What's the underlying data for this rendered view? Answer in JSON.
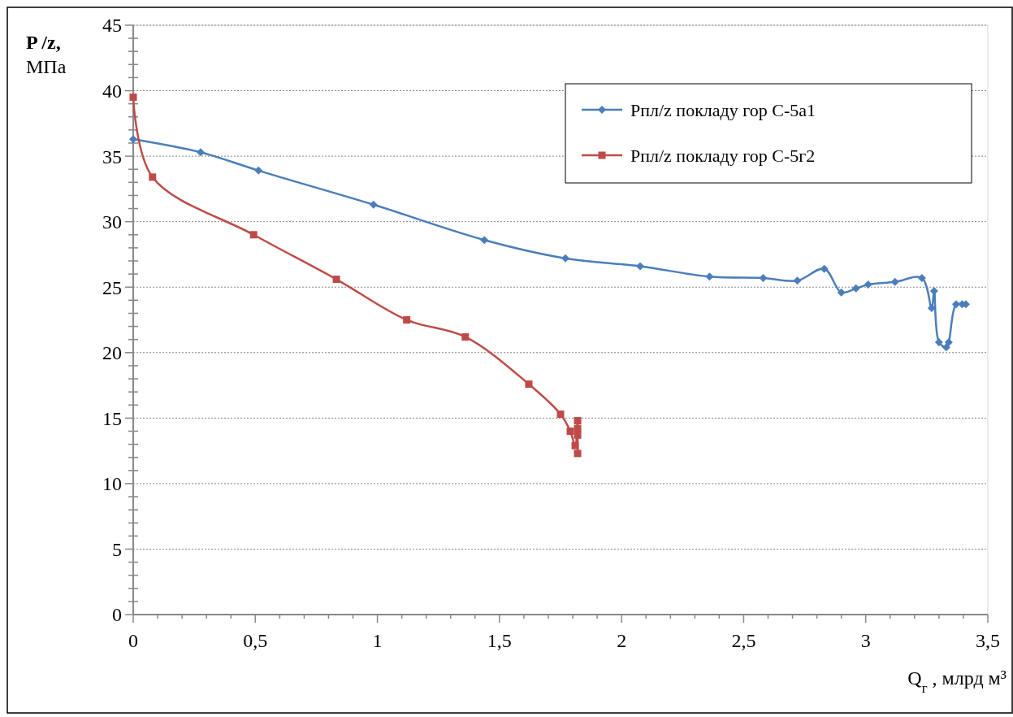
{
  "chart_data": {
    "type": "line",
    "xlabel": "Q$_{г}$ , млрд м³",
    "ylabel": "P /z, МПа",
    "xlim": [
      0,
      3.5
    ],
    "ylim": [
      0,
      45
    ],
    "xticks": [
      0,
      {
        "value": 0.1,
        "label": null
      },
      {
        "value": 0.2,
        "label": null
      },
      {
        "value": 0.3,
        "label": null
      },
      {
        "value": 0.4,
        "label": null
      },
      {
        "value": 0.5,
        "label": "0,5"
      },
      {
        "value": 0.6,
        "label": null
      },
      {
        "value": 0.7,
        "label": null
      },
      {
        "value": 0.8,
        "label": null
      },
      {
        "value": 0.9,
        "label": null
      },
      1,
      {
        "value": 1.1,
        "label": null
      },
      {
        "value": 1.2,
        "label": null
      },
      {
        "value": 1.3,
        "label": null
      },
      {
        "value": 1.4,
        "label": null
      },
      {
        "value": 1.5,
        "label": "1,5"
      },
      {
        "value": 1.6,
        "label": null
      },
      {
        "value": 1.7,
        "label": null
      },
      {
        "value": 1.8,
        "label": null
      },
      {
        "value": 1.9,
        "label": null
      },
      2,
      {
        "value": 2.1,
        "label": null
      },
      {
        "value": 2.2,
        "label": null
      },
      {
        "value": 2.3,
        "label": null
      },
      {
        "value": 2.4,
        "label": null
      },
      {
        "value": 2.5,
        "label": "2,5"
      },
      {
        "value": 2.6,
        "label": null
      },
      {
        "value": 2.7,
        "label": null
      },
      {
        "value": 2.8,
        "label": null
      },
      {
        "value": 2.9,
        "label": null
      },
      3,
      {
        "value": 3.1,
        "label": null
      },
      {
        "value": 3.2,
        "label": null
      },
      {
        "value": 3.3,
        "label": null
      },
      {
        "value": 3.4,
        "label": null
      },
      {
        "value": 3.5,
        "label": "3,5"
      }
    ],
    "yticks": [
      0,
      {
        "value": 1,
        "label": null
      },
      {
        "value": 2,
        "label": null
      },
      {
        "value": 3,
        "label": null
      },
      {
        "value": 4,
        "label": null
      },
      5,
      {
        "value": 6,
        "label": null
      },
      {
        "value": 7,
        "label": null
      },
      {
        "value": 8,
        "label": null
      },
      {
        "value": 9,
        "label": null
      },
      10,
      {
        "value": 11,
        "label": null
      },
      {
        "value": 12,
        "label": null
      },
      {
        "value": 13,
        "label": null
      },
      {
        "value": 14,
        "label": null
      },
      15,
      {
        "value": 16,
        "label": null
      },
      {
        "value": 17,
        "label": null
      },
      {
        "value": 18,
        "label": null
      },
      {
        "value": 19,
        "label": null
      },
      20,
      {
        "value": 21,
        "label": null
      },
      {
        "value": 22,
        "label": null
      },
      {
        "value": 23,
        "label": null
      },
      {
        "value": 24,
        "label": null
      },
      25,
      {
        "value": 26,
        "label": null
      },
      {
        "value": 27,
        "label": null
      },
      {
        "value": 28,
        "label": null
      },
      {
        "value": 29,
        "label": null
      },
      30,
      {
        "value": 31,
        "label": null
      },
      {
        "value": 32,
        "label": null
      },
      {
        "value": 33,
        "label": null
      },
      {
        "value": 34,
        "label": null
      },
      35,
      {
        "value": 36,
        "label": null
      },
      {
        "value": 37,
        "label": null
      },
      {
        "value": 38,
        "label": null
      },
      {
        "value": 39,
        "label": null
      },
      40,
      {
        "value": 41,
        "label": null
      },
      {
        "value": 42,
        "label": null
      },
      {
        "value": 43,
        "label": null
      },
      {
        "value": 44,
        "label": null
      },
      45
    ],
    "grid": "y",
    "legend": "top right",
    "line_style": "solid",
    "series": [
      {
        "name": "Рпл/z покладу гор С-5а1",
        "color": "#4a7ebb",
        "marker": "diamond",
        "x": [
          0,
          0.276,
          0.513,
          0.984,
          1.438,
          1.77,
          2.076,
          2.36,
          2.58,
          2.72,
          2.83,
          2.9,
          2.96,
          3.01,
          3.12,
          3.23,
          3.27,
          3.28,
          3.3,
          3.33,
          3.34,
          3.37,
          3.395,
          3.41
        ],
        "values": [
          36.3,
          35.3,
          33.9,
          31.3,
          28.6,
          27.2,
          26.6,
          25.8,
          25.7,
          25.5,
          26.4,
          24.6,
          24.9,
          25.2,
          25.4,
          25.7,
          23.4,
          24.7,
          20.8,
          20.4,
          20.8,
          23.7,
          23.7,
          23.7
        ]
      },
      {
        "name": "Рпл/z покладу гор С-5г2",
        "color": "#be4b48",
        "marker": "square",
        "x": [
          0,
          0.079,
          0.493,
          0.832,
          1.12,
          1.36,
          1.62,
          1.75,
          1.79,
          1.81,
          1.82,
          1.82,
          1.82,
          1.82
        ],
        "values": [
          39.5,
          33.4,
          29.0,
          25.6,
          22.5,
          21.2,
          17.6,
          15.3,
          14.0,
          12.9,
          14.8,
          14.2,
          13.7,
          12.3
        ]
      }
    ]
  }
}
